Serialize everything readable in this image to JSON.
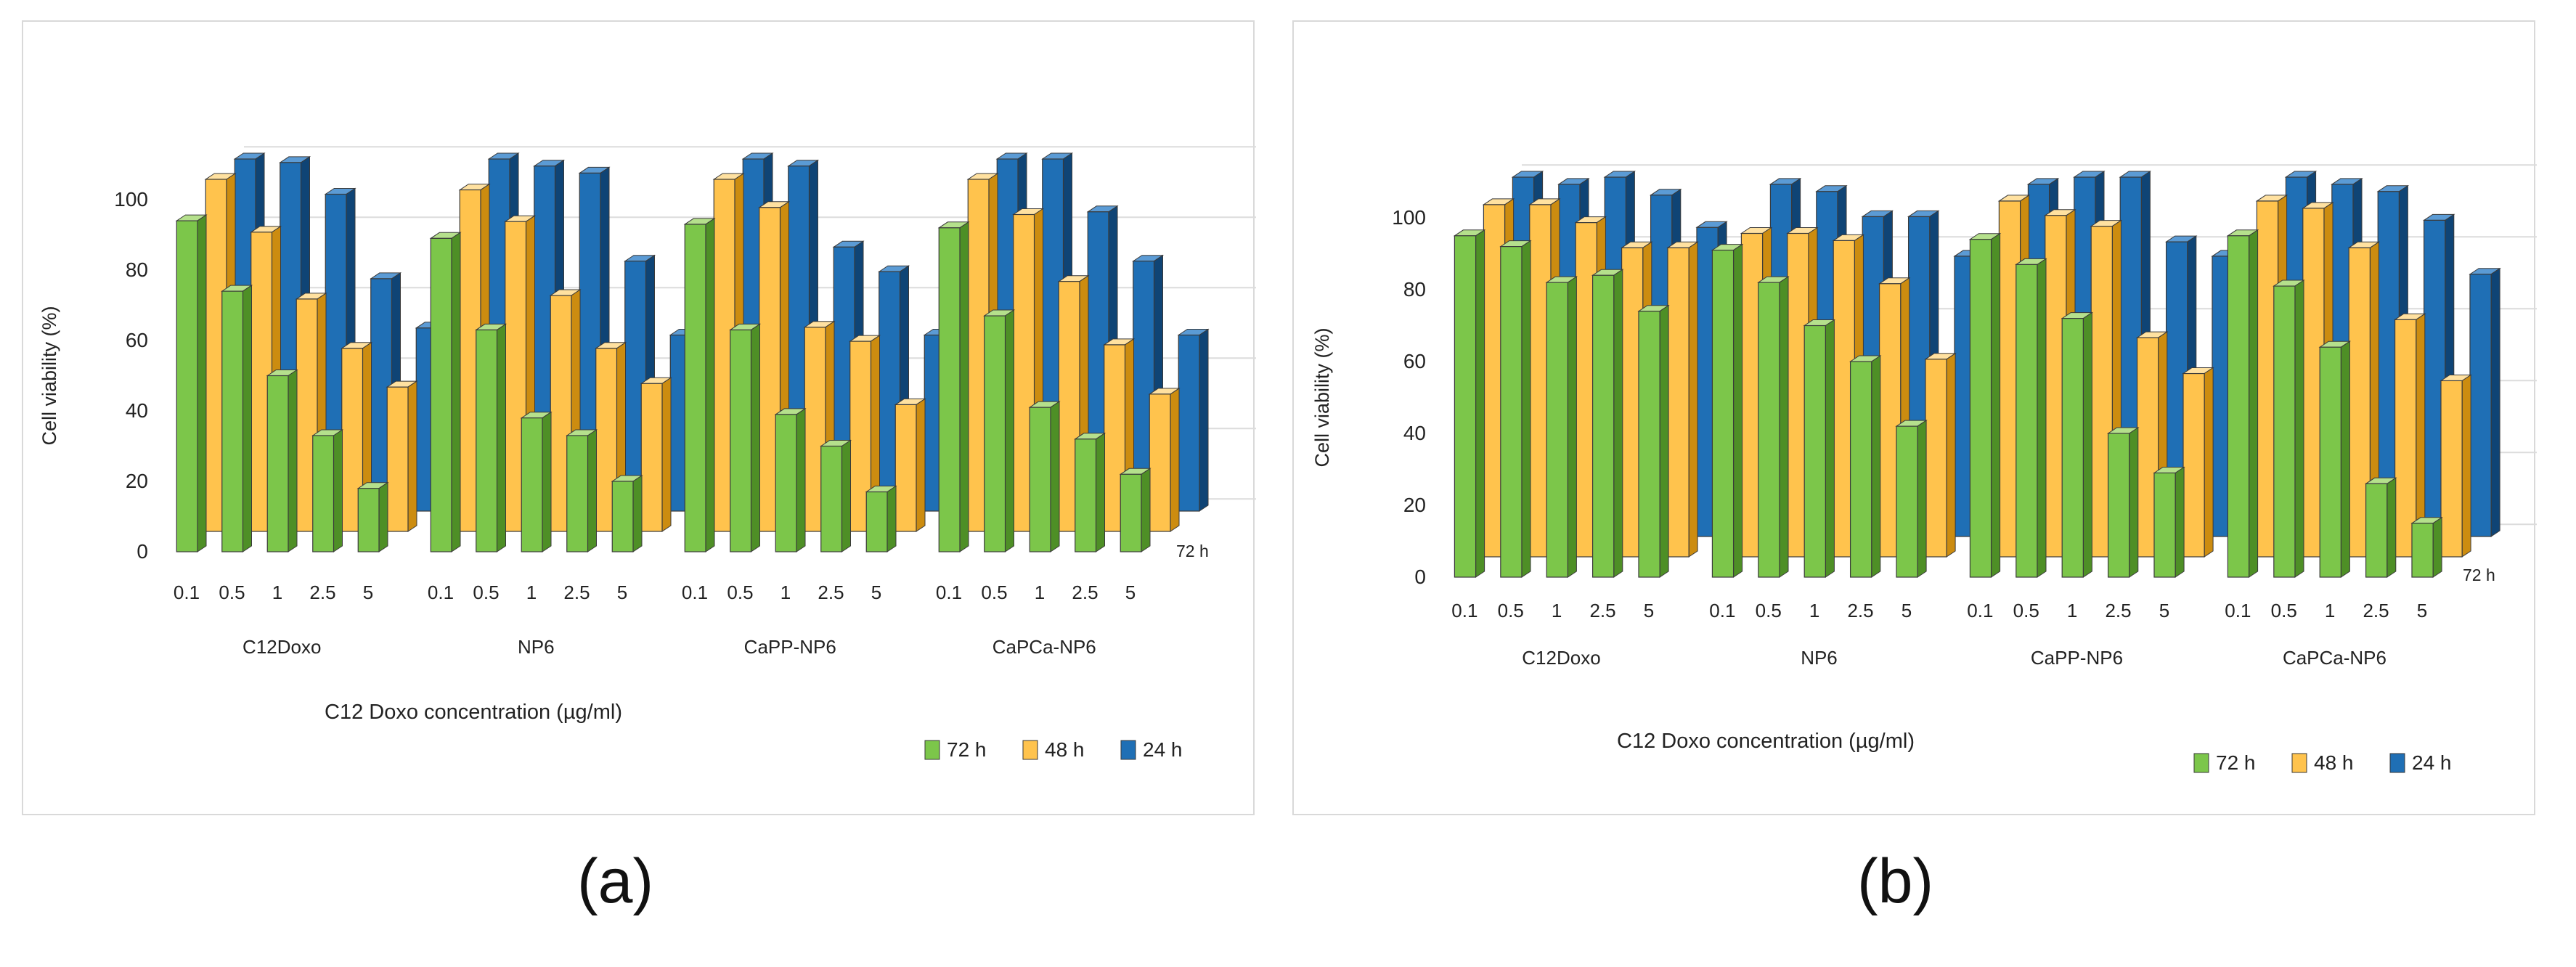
{
  "panel_labels": [
    "(a)",
    "(b)"
  ],
  "colors": {
    "green_front": "#7cc64a",
    "green_side": "#4e8f26",
    "green_top": "#b5e08c",
    "orange_front": "#ffc34d",
    "orange_side": "#cc8c10",
    "orange_top": "#ffe1a0",
    "blue_front": "#1f6fb5",
    "blue_side": "#0f4475",
    "blue_top": "#5b9bd5",
    "grid": "#dcdcdc"
  },
  "chart_data": [
    {
      "type": "bar",
      "subtype": "3d-clustered-columns",
      "panel": "(a)",
      "title": "",
      "ylabel": "Cell viability (%)",
      "xlabel": "C12 Doxo concentration (µg/ml)",
      "depth_axis_label": "72 h",
      "ylim": [
        0,
        100
      ],
      "yticks": [
        0,
        20,
        40,
        60,
        80,
        100
      ],
      "groups": [
        "C12Doxo",
        "NP6",
        "CaPP-NP6",
        "CaPCa-NP6"
      ],
      "categories": [
        "0.1",
        "0.5",
        "1",
        "2.5",
        "5"
      ],
      "legend": {
        "position": "bottom-right",
        "entries": [
          "72 h",
          "48 h",
          "24 h"
        ]
      },
      "series": [
        {
          "name": "72 h",
          "color": "green",
          "values": [
            [
              94,
              74,
              50,
              33,
              18
            ],
            [
              89,
              63,
              38,
              33,
              20
            ],
            [
              93,
              63,
              39,
              30,
              17
            ],
            [
              92,
              67,
              41,
              32,
              22
            ]
          ]
        },
        {
          "name": "48 h",
          "color": "orange",
          "values": [
            [
              100,
              85,
              66,
              52,
              41
            ],
            [
              97,
              88,
              67,
              52,
              42
            ],
            [
              100,
              92,
              58,
              54,
              36
            ],
            [
              100,
              90,
              71,
              53,
              39
            ]
          ]
        },
        {
          "name": "24 h",
          "color": "blue",
          "values": [
            [
              100,
              99,
              90,
              66,
              52
            ],
            [
              100,
              98,
              96,
              71,
              50
            ],
            [
              100,
              98,
              75,
              68,
              50
            ],
            [
              100,
              100,
              85,
              71,
              50
            ]
          ]
        }
      ]
    },
    {
      "type": "bar",
      "subtype": "3d-clustered-columns",
      "panel": "(b)",
      "title": "",
      "ylabel": "Cell viability (%)",
      "xlabel": "C12 Doxo concentration (µg/ml)",
      "depth_axis_label": "72 h",
      "ylim": [
        0,
        100
      ],
      "yticks": [
        0,
        20,
        40,
        60,
        80,
        100
      ],
      "groups": [
        "C12Doxo",
        "NP6",
        "CaPP-NP6",
        "CaPCa-NP6"
      ],
      "categories": [
        "0.1",
        "0.5",
        "1",
        "2.5",
        "5"
      ],
      "legend": {
        "position": "bottom-right",
        "entries": [
          "72 h",
          "48 h",
          "24 h"
        ]
      },
      "series": [
        {
          "name": "72 h",
          "color": "green",
          "values": [
            [
              95,
              92,
              82,
              84,
              74
            ],
            [
              91,
              82,
              70,
              60,
              42
            ],
            [
              94,
              87,
              72,
              40,
              29
            ],
            [
              95,
              81,
              64,
              26,
              15
            ]
          ]
        },
        {
          "name": "48 h",
          "color": "orange",
          "values": [
            [
              98,
              98,
              93,
              86,
              86
            ],
            [
              90,
              90,
              88,
              76,
              55
            ],
            [
              99,
              95,
              92,
              61,
              51
            ],
            [
              99,
              97,
              86,
              66,
              49
            ]
          ]
        },
        {
          "name": "24 h",
          "color": "blue",
          "values": [
            [
              100,
              98,
              100,
              95,
              86
            ],
            [
              98,
              96,
              89,
              89,
              78
            ],
            [
              98,
              100,
              100,
              82,
              78
            ],
            [
              100,
              98,
              96,
              88,
              73
            ]
          ]
        }
      ]
    }
  ]
}
